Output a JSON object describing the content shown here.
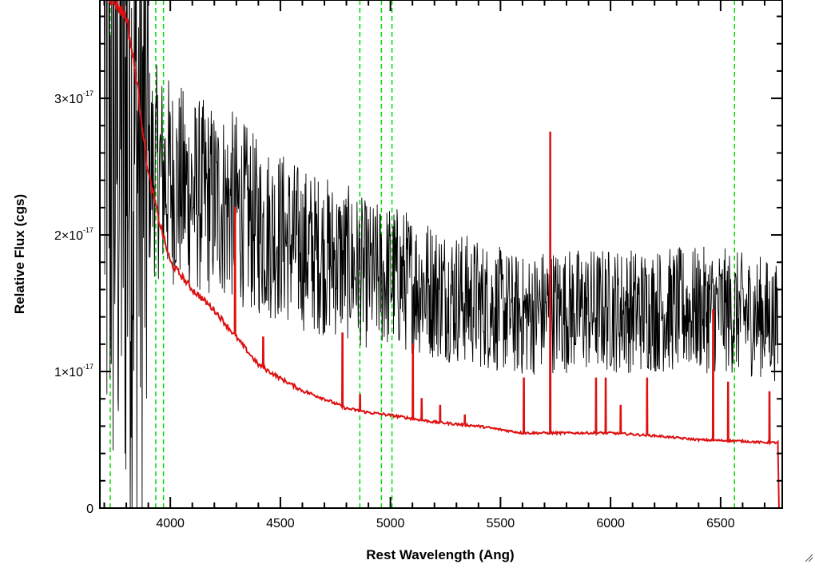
{
  "chart_data": {
    "type": "line",
    "title": "",
    "xlabel": "Rest Wavelength (Ang)",
    "ylabel": "Relative Flux (cgs)",
    "xlim": [
      3680,
      6780
    ],
    "ylim": [
      0,
      3.72e-17
    ],
    "x_ticks": [
      {
        "value": 4000,
        "label": "4000"
      },
      {
        "value": 4500,
        "label": "4500"
      },
      {
        "value": 5000,
        "label": "5000"
      },
      {
        "value": 5500,
        "label": "5500"
      },
      {
        "value": 6000,
        "label": "6000"
      },
      {
        "value": 6500,
        "label": "6500"
      }
    ],
    "y_ticks": [
      {
        "value": 0,
        "label": "0",
        "mantissa": "",
        "exponent": ""
      },
      {
        "value": 1e-17,
        "label": "1×10⁻¹⁷",
        "mantissa": "1×10",
        "exponent": "-17"
      },
      {
        "value": 2e-17,
        "label": "2×10⁻¹⁷",
        "mantissa": "2×10",
        "exponent": "-17"
      },
      {
        "value": 3e-17,
        "label": "3×10⁻¹⁷",
        "mantissa": "3×10",
        "exponent": "-17"
      }
    ],
    "x_minor_step": 100,
    "y_minor_step": 2e-18,
    "grid": false,
    "reference_lines": {
      "color": "#00dd00",
      "style": "dashed",
      "x": [
        3727,
        3934,
        3969,
        4861,
        4959,
        5007,
        6563
      ]
    },
    "series": [
      {
        "color": "#000000",
        "style": "noisy observed spectrum",
        "x": [
          3700,
          3750,
          3800,
          3850,
          3900,
          3950,
          4000,
          4100,
          4200,
          4300,
          4400,
          4500,
          4600,
          4700,
          4800,
          4900,
          5000,
          5100,
          5200,
          5300,
          5400,
          5500,
          5600,
          5700,
          5800,
          5900,
          6000,
          6100,
          6200,
          6300,
          6400,
          6500,
          6600,
          6700,
          6760
        ],
        "y": [
          3e-17,
          2.9e-17,
          2.75e-17,
          2.6e-17,
          2.5e-17,
          2.45e-17,
          2.4e-17,
          2.3e-17,
          2.25e-17,
          2.2e-17,
          2.05e-17,
          2e-17,
          1.9e-17,
          1.85e-17,
          1.8e-17,
          1.7e-17,
          1.7e-17,
          1.65e-17,
          1.6e-17,
          1.55e-17,
          1.5e-17,
          1.45e-17,
          1.4e-17,
          1.45e-17,
          1.45e-17,
          1.45e-17,
          1.45e-17,
          1.45e-17,
          1.45e-17,
          1.45e-17,
          1.45e-17,
          1.45e-17,
          1.42e-17,
          1.4e-17,
          1.35e-17
        ]
      },
      {
        "color": "#dd1111",
        "style": "smooth model continuum with emission spikes",
        "x": [
          3700,
          3800,
          3850,
          3900,
          3950,
          4000,
          4100,
          4200,
          4300,
          4400,
          4500,
          4600,
          4700,
          4800,
          4900,
          5000,
          5200,
          5400,
          5600,
          5800,
          6000,
          6200,
          6400,
          6600,
          6700,
          6760,
          6765
        ],
        "y": [
          3.8e-17,
          3.6e-17,
          3.1e-17,
          2.45e-17,
          2.1e-17,
          1.8e-17,
          1.6e-17,
          1.45e-17,
          1.25e-17,
          1.05e-17,
          9.5e-18,
          8.6e-18,
          8e-18,
          7.3e-18,
          7e-18,
          6.8e-18,
          6.3e-18,
          6e-18,
          5.5e-18,
          5.5e-18,
          5.5e-18,
          5.3e-18,
          5e-18,
          4.9e-18,
          4.8e-18,
          4.8e-18,
          0.0
        ],
        "spikes": [
          {
            "x": 4290,
            "y": 2.2e-17
          },
          {
            "x": 4420,
            "y": 1.25e-17
          },
          {
            "x": 4780,
            "y": 1.28e-17
          },
          {
            "x": 4860,
            "y": 8.3e-18
          },
          {
            "x": 5100,
            "y": 1.2e-17
          },
          {
            "x": 5140,
            "y": 8e-18
          },
          {
            "x": 5225,
            "y": 7.5e-18
          },
          {
            "x": 5335,
            "y": 6.8e-18
          },
          {
            "x": 5605,
            "y": 9.5e-18
          },
          {
            "x": 5725,
            "y": 2.75e-17
          },
          {
            "x": 5930,
            "y": 9.5e-18
          },
          {
            "x": 5975,
            "y": 9.5e-18
          },
          {
            "x": 6045,
            "y": 7.5e-18
          },
          {
            "x": 6165,
            "y": 9.5e-18
          },
          {
            "x": 6465,
            "y": 1.45e-17
          },
          {
            "x": 6530,
            "y": 9.2e-18
          },
          {
            "x": 6720,
            "y": 8.5e-18
          }
        ]
      }
    ]
  },
  "icons": {
    "resize_grip": "resize-grip-icon"
  }
}
